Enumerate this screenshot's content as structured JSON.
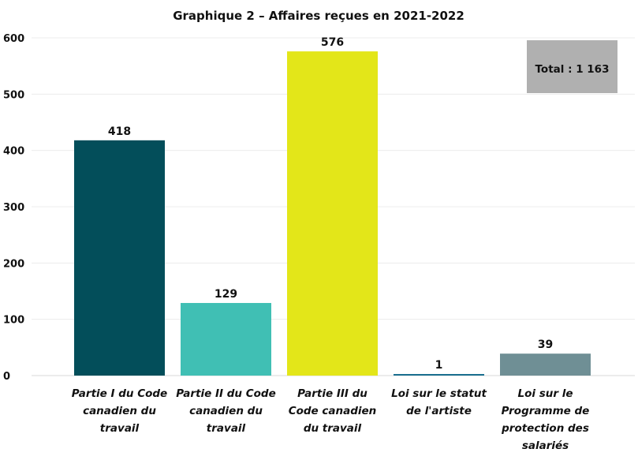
{
  "chart_data": {
    "type": "bar",
    "title": "Graphique 2 – Affaires reçues en 2021-2022",
    "categories": [
      "Partie I du Code canadien du travail",
      "Partie II du Code canadien du travail",
      "Partie III du Code canadien du travail",
      "Loi sur le statut de l'artiste",
      "Loi sur le Programme de protection des salariés"
    ],
    "category_lines": [
      [
        "Partie I du Code",
        "canadien du",
        "travail"
      ],
      [
        "Partie II du Code",
        "canadien du",
        "travail"
      ],
      [
        "Partie III du",
        "Code canadien",
        "du travail"
      ],
      [
        "Loi sur le statut",
        "de l'artiste"
      ],
      [
        "Loi sur le",
        "Programme de",
        "protection des",
        "salariés"
      ]
    ],
    "values": [
      418,
      129,
      576,
      1,
      39
    ],
    "colors": [
      "#034e5a",
      "#40bfb4",
      "#e3e619",
      "#1a6f8f",
      "#6f8f95"
    ],
    "ylim": [
      0,
      600
    ],
    "yticks": [
      0,
      100,
      200,
      300,
      400,
      500,
      600
    ],
    "grid": true,
    "xlabel": "",
    "ylabel": "",
    "annotation": {
      "text": "Total : 1 163",
      "color": "#b0b0b0"
    }
  }
}
